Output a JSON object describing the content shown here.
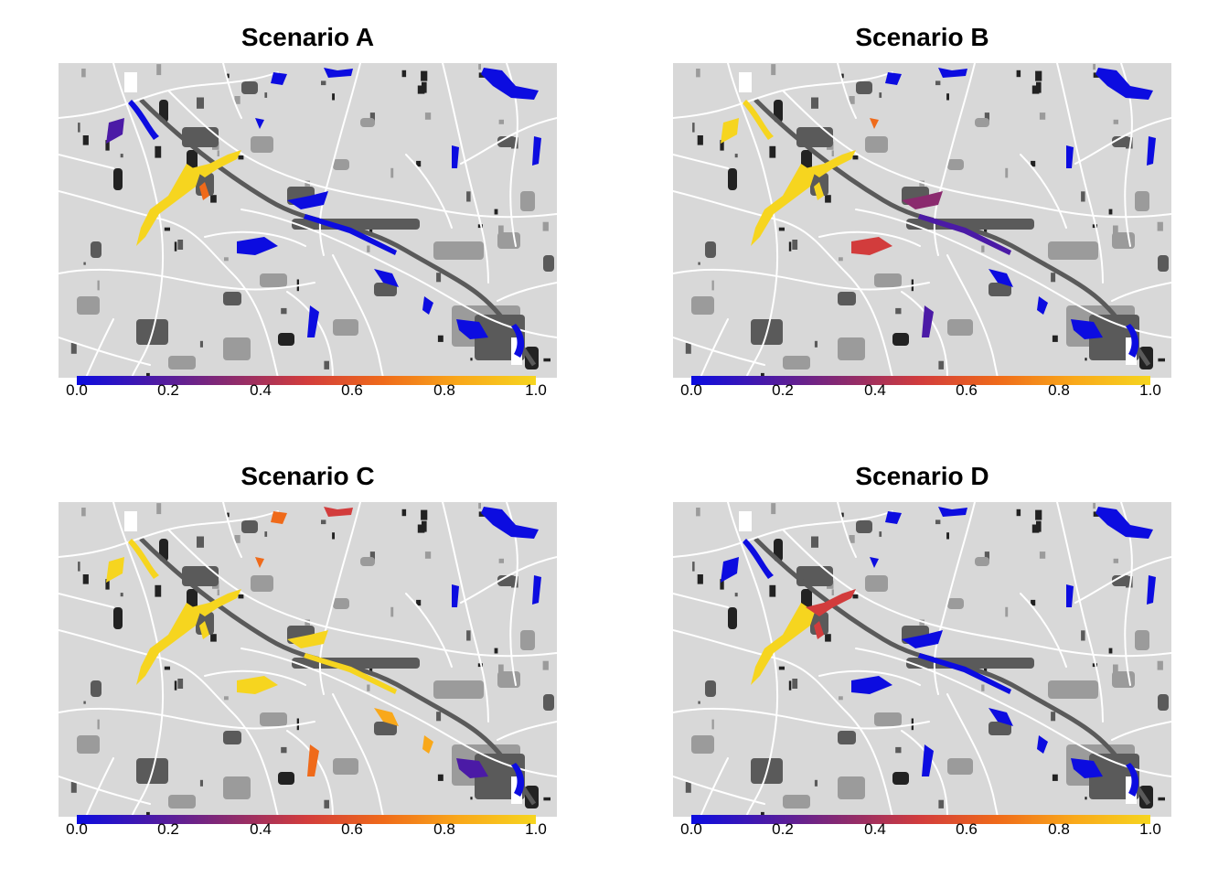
{
  "panels": [
    {
      "title": "Scenario A"
    },
    {
      "title": "Scenario B"
    },
    {
      "title": "Scenario C"
    },
    {
      "title": "Scenario D"
    }
  ],
  "legend": {
    "ticks": [
      "0.0",
      "0.2",
      "0.4",
      "0.6",
      "0.8",
      "1.0"
    ],
    "colors": [
      "#0c0ce0",
      "#4b1aa6",
      "#8a2a6e",
      "#d23c3c",
      "#ef6a1a",
      "#f9a81a",
      "#f6d51f"
    ]
  },
  "map_colors": {
    "background": "#d8d8d8",
    "roads": "#ffffff",
    "land_medium": "#9b9b9b",
    "land_dark": "#5a5a5a",
    "land_black": "#222222"
  }
}
